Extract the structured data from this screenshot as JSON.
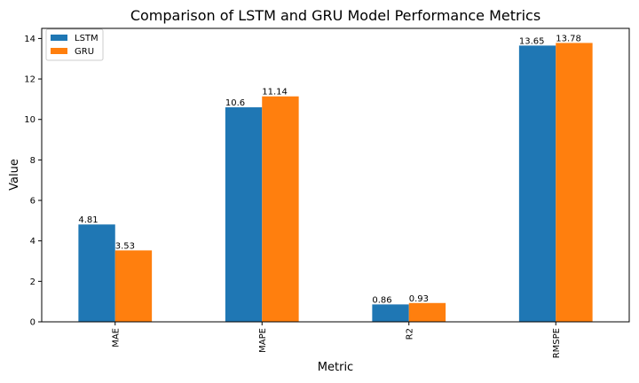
{
  "chart_data": {
    "type": "bar",
    "title": "Comparison of LSTM and GRU Model Performance Metrics",
    "xlabel": "Metric",
    "ylabel": "Value",
    "categories": [
      "MAE",
      "MAPE",
      "R2",
      "RMSPE"
    ],
    "series": [
      {
        "name": "LSTM",
        "color": "#1f77b4",
        "values": [
          4.81,
          10.6,
          0.86,
          13.65
        ],
        "labels": [
          "4.81",
          "10.6",
          "0.86",
          "13.65"
        ]
      },
      {
        "name": "GRU",
        "color": "#ff7f0e",
        "values": [
          3.53,
          11.14,
          0.93,
          13.78
        ],
        "labels": [
          "3.53",
          "11.14",
          "0.93",
          "13.78"
        ]
      }
    ],
    "ylim": [
      0,
      14.5
    ],
    "yticks": [
      0,
      2,
      4,
      6,
      8,
      10,
      12,
      14
    ],
    "legend_position": "top-left",
    "grid": false
  }
}
